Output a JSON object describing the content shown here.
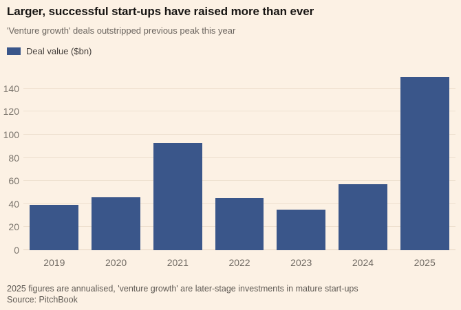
{
  "header": {
    "title": "Larger, successful start-ups have raised more than ever",
    "subtitle": "'Venture growth' deals outstripped previous peak this year"
  },
  "legend": {
    "label": "Deal value ($bn)",
    "swatch_color": "#3a568a"
  },
  "chart_data": {
    "type": "bar",
    "title": "Larger, successful start-ups have raised more than ever",
    "subtitle": "'Venture growth' deals outstripped previous peak this year",
    "series_name": "Deal value ($bn)",
    "categories": [
      "2019",
      "2020",
      "2021",
      "2022",
      "2023",
      "2024",
      "2025"
    ],
    "values": [
      39,
      46,
      93,
      45,
      35,
      57,
      150
    ],
    "xlabel": "",
    "ylabel": "Deal value ($bn)",
    "ylim": [
      0,
      160
    ],
    "yticks": [
      0,
      20,
      40,
      60,
      80,
      100,
      120,
      140
    ],
    "grid": true,
    "legend_position": "top-left",
    "bar_color": "#3a568a",
    "background_color": "#fcf1e4",
    "gridline_color": "#eee0cf"
  },
  "footer": {
    "note": "2025 figures are annualised, 'venture growth' are later-stage investments in mature start-ups",
    "source": "Source: PitchBook"
  }
}
